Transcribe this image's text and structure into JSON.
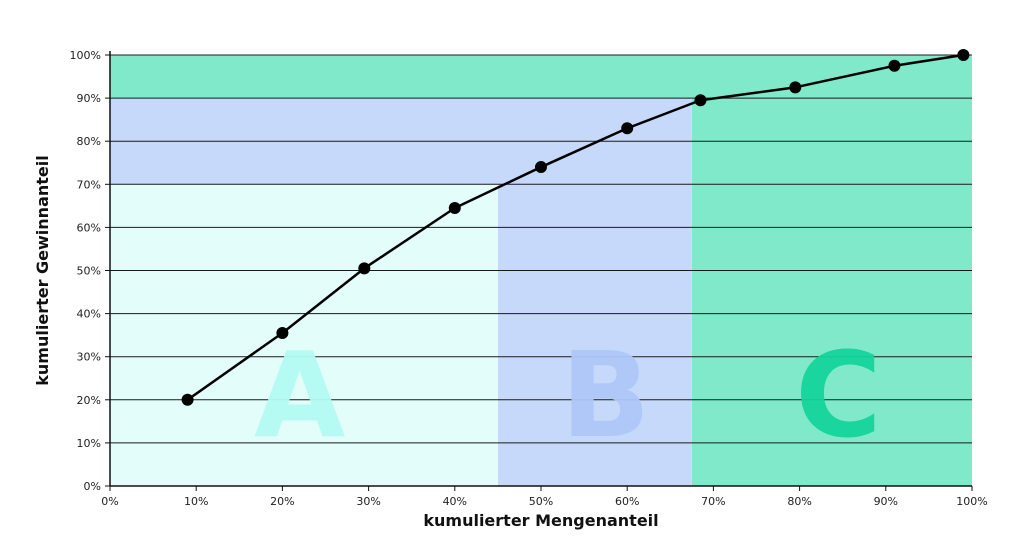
{
  "chart_data": {
    "type": "line",
    "title": "",
    "xlabel": "kumulierter Mengenanteil",
    "ylabel": "kumulierter Gewinnanteil",
    "xlim": [
      0,
      100
    ],
    "ylim": [
      0,
      100
    ],
    "x_ticks": [
      "0%",
      "10%",
      "20%",
      "30%",
      "40%",
      "50%",
      "60%",
      "70%",
      "80%",
      "90%",
      "100%"
    ],
    "y_ticks": [
      "0%",
      "10%",
      "20%",
      "30%",
      "40%",
      "50%",
      "60%",
      "70%",
      "80%",
      "90%",
      "100%"
    ],
    "grid": "horizontal",
    "series": [
      {
        "x": [
          9,
          20,
          29.5,
          40,
          50,
          60,
          68.5,
          79.5,
          91,
          99
        ],
        "y": [
          20,
          35.5,
          50.5,
          64.5,
          74,
          83,
          89.5,
          92.5,
          97.5,
          100
        ],
        "color": "#000000"
      }
    ],
    "zones": [
      {
        "label": "A",
        "x_range": [
          0,
          45
        ],
        "y_range": [
          0,
          70
        ],
        "background": "#e2fdfa",
        "label_color": "#b4fbf3"
      },
      {
        "label": "B",
        "x_range": [
          45,
          67.5
        ],
        "y_range": [
          70,
          90
        ],
        "background": "#c6d9fb",
        "label_color": "#aec8f7"
      },
      {
        "label": "C",
        "x_range": [
          67.5,
          100
        ],
        "y_range": [
          90,
          100
        ],
        "background": "#7fe9c9",
        "label_color": "#15d49b"
      }
    ]
  }
}
